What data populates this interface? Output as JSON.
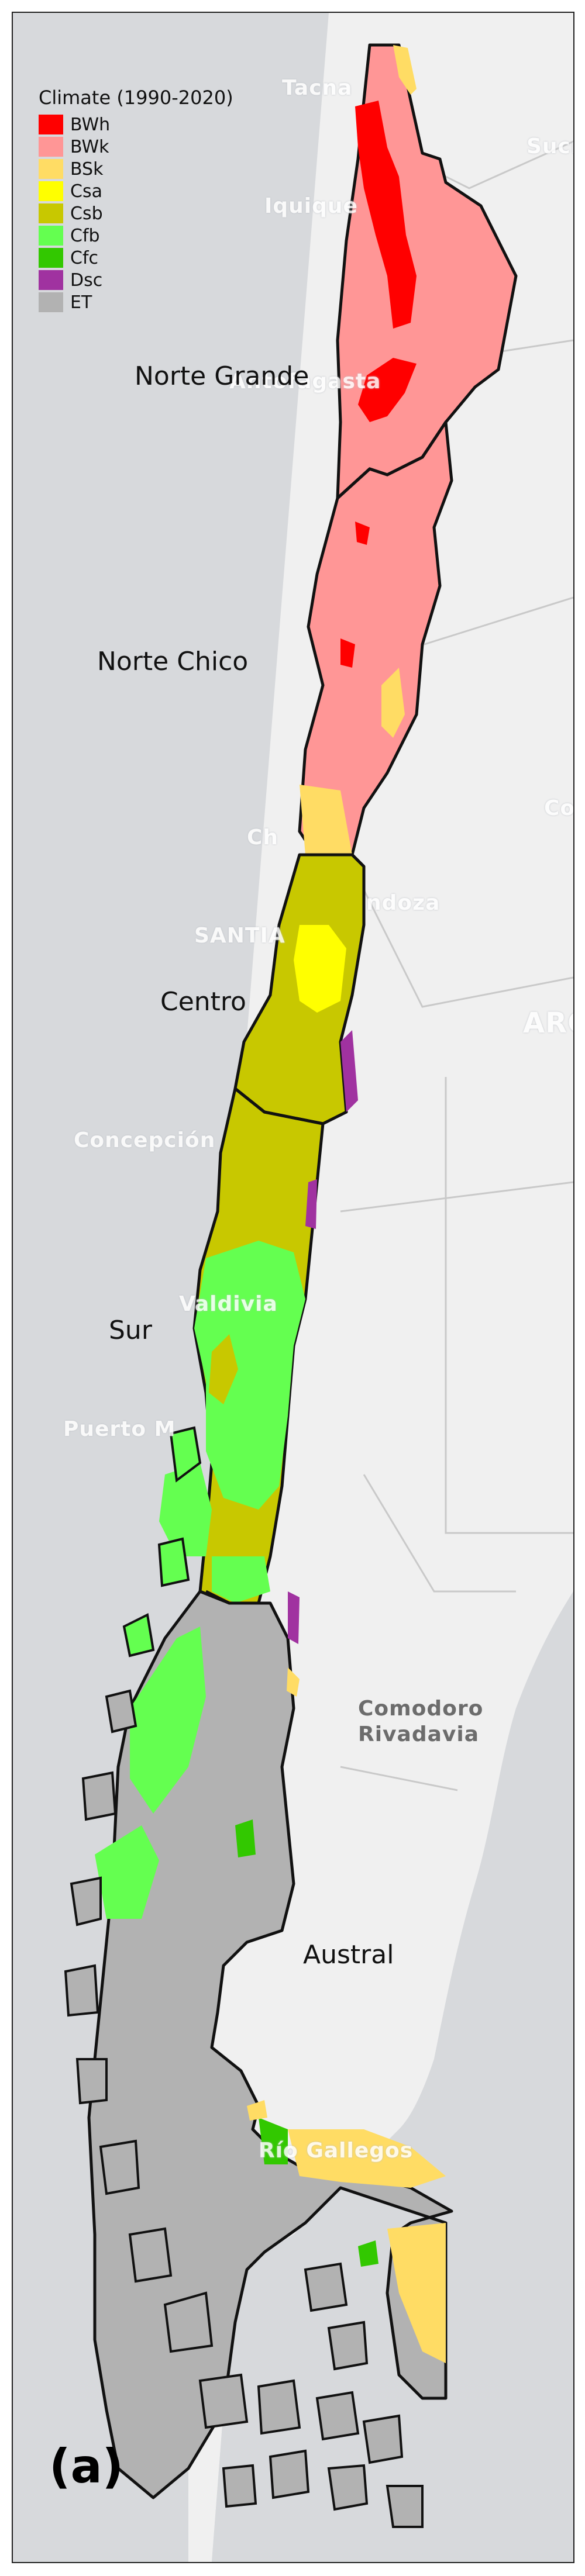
{
  "legend": {
    "title": "Climate (1990-2020)",
    "items": [
      {
        "code": "BWh",
        "color": "#ff0000"
      },
      {
        "code": "BWk",
        "color": "#ff9696"
      },
      {
        "code": "BSk",
        "color": "#ffdc64"
      },
      {
        "code": "Csa",
        "color": "#ffff00"
      },
      {
        "code": "Csb",
        "color": "#c8c800"
      },
      {
        "code": "Cfb",
        "color": "#64ff50"
      },
      {
        "code": "Cfc",
        "color": "#32c800"
      },
      {
        "code": "Dsc",
        "color": "#a032a0"
      },
      {
        "code": "ET",
        "color": "#b2b2b2"
      }
    ]
  },
  "regions": [
    "Norte Grande",
    "Norte Chico",
    "Centro",
    "Sur",
    "Austral"
  ],
  "basemap_labels": [
    "Tacna",
    "Sucr",
    "Iquique",
    "Antofagasta",
    "Co",
    "Ch",
    "SANTIA",
    "ndoza",
    "ARG",
    "Concepción",
    "Valdivia",
    "Puerto M",
    "Comodoro",
    "Rivadavia",
    "Río Gallegos"
  ],
  "panel_label": "(a)",
  "colors": {
    "ocean": "#d7d9dc",
    "land": "#f1f1f1",
    "border": "#111111"
  }
}
